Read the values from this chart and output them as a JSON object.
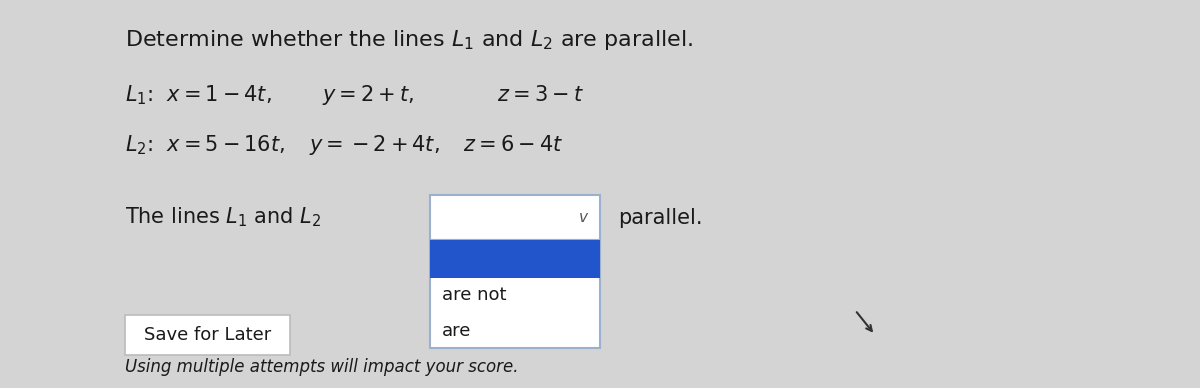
{
  "background_color": "#d4d4d4",
  "text_color": "#1a1a1a",
  "title": "Determine whether the lines $L_1$ and $L_2$ are parallel.",
  "L1": "$L_1$:  $x = 1 - 4t,$      $y = 2 + t,$         $z = 3 - t$",
  "L2": "$L_2$:  $x = 5 - 16t,$   $y = -2 + 4t,$   $z = 6 - 4t$",
  "sentence": "The lines $L_1$ and $L_2$",
  "parallel": "parallel.",
  "are_not": "are not",
  "are": "are",
  "save": "Save for Later",
  "bottom": "Using multiple attempts will impact your score.",
  "blue": "#2255cc",
  "white": "#ffffff",
  "border_color": "#9ab0cc",
  "save_border": "#bbbbbb",
  "font_title": 16,
  "font_body": 15,
  "font_small": 13
}
